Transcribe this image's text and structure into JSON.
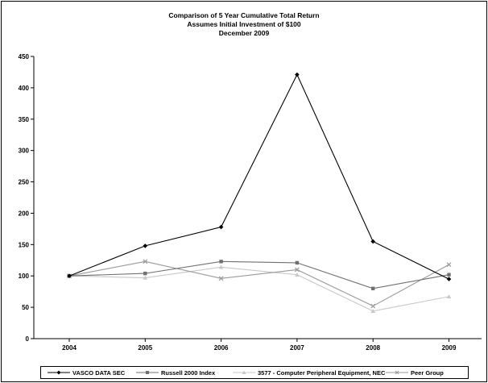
{
  "chart_data": {
    "type": "line",
    "title": "Comparison of 5 Year Cumulative Total Return",
    "subtitle": "Assumes Initial Investment of $100",
    "date_line": "December 2009",
    "categories": [
      "2004",
      "2005",
      "2006",
      "2007",
      "2008",
      "2009"
    ],
    "ylim": [
      0,
      450
    ],
    "yticks": [
      0,
      50,
      100,
      150,
      200,
      250,
      300,
      350,
      400,
      450
    ],
    "grid": false,
    "legend_position": "bottom",
    "series": [
      {
        "name": "VASCO DATA SEC",
        "values": [
          100,
          148,
          178,
          421,
          155,
          95
        ],
        "color": "#000000",
        "marker": "diamond"
      },
      {
        "name": "Russell 2000 Index",
        "values": [
          100,
          104,
          123,
          121,
          80,
          102
        ],
        "color": "#707070",
        "marker": "square"
      },
      {
        "name": "3577 - Computer Peripheral Equipment, NEC",
        "values": [
          100,
          97,
          114,
          102,
          44,
          67
        ],
        "color": "#c8c8c8",
        "marker": "triangle"
      },
      {
        "name": "Peer Group",
        "values": [
          100,
          123,
          96,
          110,
          52,
          118
        ],
        "color": "#999999",
        "marker": "x"
      }
    ]
  }
}
